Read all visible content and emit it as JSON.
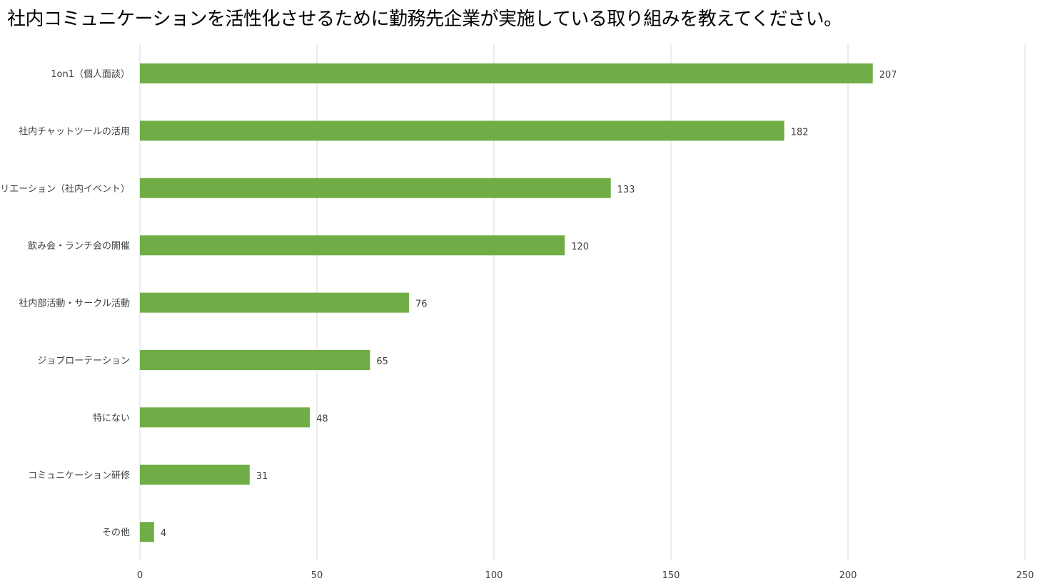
{
  "chart_data": {
    "type": "bar",
    "orientation": "horizontal",
    "title": "社内コミュニケーションを活性化させるために勤務先企業が実施している取り組みを教えてください。",
    "categories": [
      "1on1（個人面談）",
      "社内チャットツールの活用",
      "レクリエーション（社内イベント）",
      "飲み会・ランチ会の開催",
      "社内部活動・サークル活動",
      "ジョブローテーション",
      "特にない",
      "コミュニケーション研修",
      "その他"
    ],
    "values": [
      207,
      182,
      133,
      120,
      76,
      65,
      48,
      31,
      4
    ],
    "xlim": [
      0,
      250
    ],
    "xticks": [
      0,
      50,
      100,
      150,
      200,
      250
    ],
    "grid": true,
    "data_labels": true,
    "legend": "none",
    "bar_color": "#70AD47",
    "grid_color": "#D9D9D9",
    "label_color": "#404040"
  }
}
